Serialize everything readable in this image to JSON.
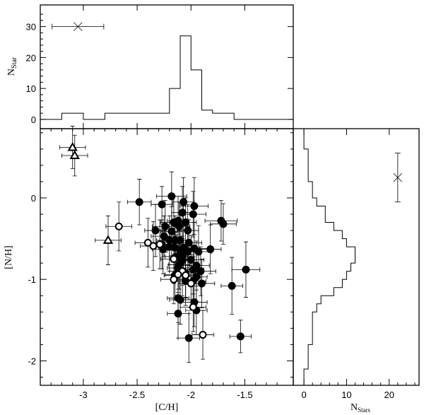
{
  "chart_data": [
    {
      "type": "histogram",
      "panel": "top",
      "ylabel_main": "N",
      "ylabel_sub": "Star",
      "xlim": [
        -3.4,
        -1.05
      ],
      "ylim": [
        -3,
        37
      ],
      "yticks": [
        "0",
        "10",
        "20",
        "30"
      ],
      "bin_edges": [
        -3.4,
        -3.2,
        -3.0,
        -2.8,
        -2.6,
        -2.4,
        -2.2,
        -2.1,
        -2.0,
        -1.9,
        -1.8,
        -1.6,
        -1.4,
        -1.05
      ],
      "counts": [
        0,
        2,
        0,
        2,
        2,
        2,
        10,
        27,
        16,
        3,
        2,
        0,
        0
      ],
      "error_cross": {
        "x": -3.05,
        "y": 30,
        "xerr": 0.12
      }
    },
    {
      "type": "scatter",
      "panel": "main",
      "xlabel": "[C/H]",
      "ylabel": "[N/H]",
      "xlim": [
        -3.4,
        -1.05
      ],
      "ylim": [
        -2.3,
        0.85
      ],
      "xticks": [
        "-3",
        "-2.5",
        "-2",
        "-1.5"
      ],
      "yticks": [
        "-2",
        "-1",
        "0"
      ],
      "series": [
        {
          "marker": "filled-circle",
          "points": [
            [
              -2.48,
              -0.05
            ],
            [
              -2.18,
              0.02
            ],
            [
              -2.07,
              -0.05
            ],
            [
              -2.27,
              -0.08
            ],
            [
              -1.97,
              -0.1
            ],
            [
              -1.98,
              -0.2
            ],
            [
              -2.08,
              -0.18
            ],
            [
              -1.72,
              -0.28
            ],
            [
              -1.7,
              -0.32
            ],
            [
              -2.12,
              -0.28
            ],
            [
              -2.16,
              -0.3
            ],
            [
              -2.05,
              -0.3
            ],
            [
              -2.24,
              -0.35
            ],
            [
              -2.11,
              -0.35
            ],
            [
              -2.33,
              -0.4
            ],
            [
              -2.18,
              -0.41
            ],
            [
              -2.03,
              -0.4
            ],
            [
              -2.25,
              -0.47
            ],
            [
              -2.2,
              -0.52
            ],
            [
              -2.15,
              -0.52
            ],
            [
              -2.1,
              -0.52
            ],
            [
              -2.02,
              -0.55
            ],
            [
              -2.27,
              -0.57
            ],
            [
              -2.2,
              -0.6
            ],
            [
              -2.15,
              -0.61
            ],
            [
              -2.07,
              -0.61
            ],
            [
              -1.97,
              -0.62
            ],
            [
              -2.26,
              -0.63
            ],
            [
              -2.1,
              -0.64
            ],
            [
              -1.82,
              -0.63
            ],
            [
              -2.03,
              -0.66
            ],
            [
              -1.93,
              -0.66
            ],
            [
              -2.08,
              -0.7
            ],
            [
              -2.14,
              -0.72
            ],
            [
              -2.0,
              -0.76
            ],
            [
              -2.08,
              -0.77
            ],
            [
              -2.11,
              -0.82
            ],
            [
              -1.95,
              -0.83
            ],
            [
              -2.12,
              -0.86
            ],
            [
              -1.98,
              -0.88
            ],
            [
              -1.91,
              -0.9
            ],
            [
              -2.05,
              -0.92
            ],
            [
              -2.15,
              -0.95
            ],
            [
              -1.95,
              -0.97
            ],
            [
              -2.05,
              -1.02
            ],
            [
              -1.98,
              -1.02
            ],
            [
              -1.9,
              -1.05
            ],
            [
              -1.62,
              -1.08
            ],
            [
              -1.49,
              -0.88
            ],
            [
              -2.12,
              -1.23
            ],
            [
              -2.1,
              -1.25
            ],
            [
              -1.97,
              -1.28
            ],
            [
              -1.95,
              -1.38
            ],
            [
              -2.12,
              -1.42
            ],
            [
              -2.02,
              -1.72
            ],
            [
              -1.54,
              -1.7
            ]
          ],
          "xerr": [
            0.11,
            0.14,
            0.1,
            0.1,
            0.13,
            0.12,
            0.1,
            0.15,
            0.12,
            0.1,
            0.12,
            0.1,
            0.12,
            0.1,
            0.1,
            0.1,
            0.1,
            0.12,
            0.12,
            0.1,
            0.1,
            0.12,
            0.1,
            0.1,
            0.12,
            0.1,
            0.13,
            0.1,
            0.12,
            0.1,
            0.1,
            0.12,
            0.1,
            0.1,
            0.12,
            0.1,
            0.1,
            0.12,
            0.1,
            0.1,
            0.14,
            0.1,
            0.1,
            0.1,
            0.1,
            0.12,
            0.12,
            0.1,
            0.13,
            0.1,
            0.1,
            0.12,
            0.1,
            0.1,
            0.1,
            0.1
          ],
          "yerr": [
            0.28,
            0.3,
            0.3,
            0.22,
            0.35,
            0.28,
            0.32,
            0.25,
            0.25,
            0.3,
            0.32,
            0.3,
            0.32,
            0.3,
            0.32,
            0.3,
            0.32,
            0.25,
            0.3,
            0.3,
            0.32,
            0.28,
            0.3,
            0.3,
            0.3,
            0.3,
            0.32,
            0.3,
            0.3,
            0.3,
            0.3,
            0.32,
            0.3,
            0.3,
            0.3,
            0.3,
            0.3,
            0.3,
            0.3,
            0.3,
            0.3,
            0.3,
            0.3,
            0.3,
            0.3,
            0.3,
            0.3,
            0.35,
            0.34,
            0.3,
            0.3,
            0.3,
            0.3,
            0.3,
            0.3,
            0.2
          ]
        },
        {
          "marker": "open-circle",
          "points": [
            [
              -2.67,
              -0.35
            ],
            [
              -2.4,
              -0.55
            ],
            [
              -2.35,
              -0.59
            ],
            [
              -2.29,
              -0.57
            ],
            [
              -2.16,
              -0.75
            ],
            [
              -2.08,
              -0.9
            ],
            [
              -2.05,
              -0.95
            ],
            [
              -2.12,
              -0.94
            ],
            [
              -2.16,
              -1.0
            ],
            [
              -2.0,
              -1.05
            ],
            [
              -1.98,
              -1.34
            ],
            [
              -1.89,
              -1.68
            ]
          ],
          "xerr": [
            0.12,
            0.12,
            0.12,
            0.12,
            0.12,
            0.12,
            0.12,
            0.12,
            0.12,
            0.12,
            0.12,
            0.1
          ],
          "yerr": [
            0.3,
            0.3,
            0.3,
            0.3,
            0.3,
            0.3,
            0.3,
            0.3,
            0.3,
            0.3,
            0.3,
            0.3
          ]
        },
        {
          "marker": "open-triangle",
          "points": [
            [
              -3.1,
              0.62
            ],
            [
              -3.08,
              0.52
            ],
            [
              -2.77,
              -0.52
            ]
          ],
          "xerr": [
            0.12,
            0.12,
            0.12
          ],
          "yerr": [
            0.26,
            0.25,
            0.3
          ]
        }
      ]
    },
    {
      "type": "histogram",
      "panel": "right",
      "orientation": "horizontal",
      "xlabel_main": "N",
      "xlabel_sub": "Stars",
      "xlim": [
        -2.5,
        27
      ],
      "xticks": [
        "0",
        "10",
        "20"
      ],
      "ylim": [
        -2.3,
        0.85
      ],
      "bin_edges": [
        -2.3,
        -2.1,
        -1.9,
        -1.8,
        -1.7,
        -1.6,
        -1.5,
        -1.4,
        -1.3,
        -1.2,
        -1.1,
        -1.0,
        -0.9,
        -0.8,
        -0.7,
        -0.6,
        -0.5,
        -0.4,
        -0.3,
        -0.2,
        -0.1,
        0.0,
        0.1,
        0.2,
        0.3,
        0.4,
        0.5,
        0.6,
        0.7,
        0.85
      ],
      "counts": [
        0,
        1,
        1,
        2,
        2,
        2,
        2,
        3,
        4,
        7,
        9,
        10,
        11,
        12,
        12,
        10,
        9,
        7,
        5,
        5,
        3,
        2,
        2,
        1,
        1,
        1,
        1,
        0,
        0
      ],
      "error_cross": {
        "x": 22,
        "y": 0.25,
        "yerr": 0.3
      }
    }
  ]
}
